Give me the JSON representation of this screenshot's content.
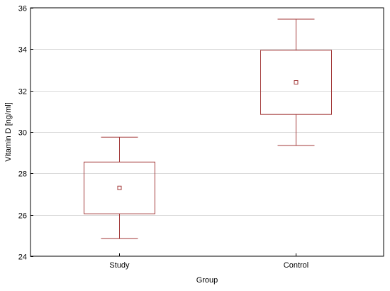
{
  "chart_data": {
    "type": "box",
    "xlabel": "Group",
    "ylabel": "Vitamin D [ng/ml]",
    "categories": [
      "Study",
      "Control"
    ],
    "ylim": [
      24,
      36
    ],
    "yticks": [
      24,
      26,
      28,
      30,
      32,
      34,
      36
    ],
    "grid": true,
    "color": "#a33a3a",
    "boxes": [
      {
        "name": "Study",
        "whisker_low": 24.85,
        "box_low": 26.05,
        "mean": 27.3,
        "box_high": 28.55,
        "whisker_high": 29.75
      },
      {
        "name": "Control",
        "whisker_low": 29.35,
        "box_low": 30.85,
        "mean": 32.4,
        "box_high": 33.95,
        "whisker_high": 35.45
      }
    ]
  }
}
